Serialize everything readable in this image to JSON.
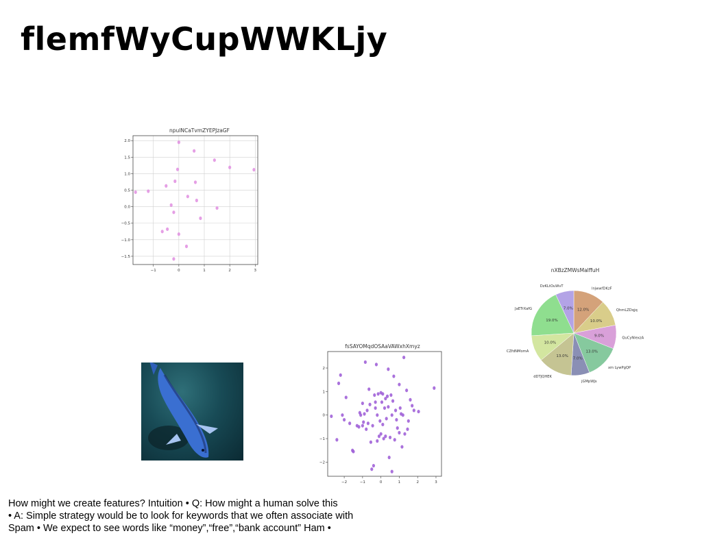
{
  "slide": {
    "title": "flemfWyCupWWKLjy",
    "body_lines": [
      "How might we create features? Intuition • Q: How might a human solve this",
      "• A: Simple strategy would be to look for keywords that we often associate with",
      "Spam • We expect to see words like “money”,“free”,“bank account” Ham •"
    ],
    "image_subject": "koi-fish-photo"
  },
  "chart_data": [
    {
      "type": "scatter",
      "title": "npulNCaTvmZYEPJzaGF",
      "xlabel": "",
      "ylabel": "",
      "xlim": [
        -1.8,
        3.1
      ],
      "ylim": [
        -1.75,
        2.15
      ],
      "xticks": [
        -1,
        0,
        1,
        2,
        3
      ],
      "yticks": [
        -1.5,
        -1.0,
        -0.5,
        0.0,
        0.5,
        1.0,
        1.5,
        2.0
      ],
      "xtick_labels": [
        "−1",
        "0",
        "1",
        "2",
        "3"
      ],
      "ytick_labels": [
        "−1.5",
        "−1.0",
        "−0.5",
        "0.0",
        "0.5",
        "1.0",
        "1.5",
        "2.0"
      ],
      "grid": true,
      "color": "#e08ee0",
      "x": [
        -1.7,
        -1.2,
        -0.5,
        -0.3,
        -0.15,
        -0.05,
        0.0,
        0.0,
        0.3,
        0.35,
        0.6,
        0.65,
        0.7,
        0.85,
        1.4,
        1.5,
        2.0,
        2.95,
        -0.2,
        -0.65,
        -0.45,
        -0.2
      ],
      "y": [
        0.44,
        0.47,
        0.63,
        0.05,
        0.77,
        1.13,
        1.95,
        -0.83,
        -1.2,
        0.31,
        1.69,
        0.74,
        0.19,
        -0.35,
        1.41,
        -0.04,
        1.19,
        1.12,
        -1.58,
        -0.75,
        -0.68,
        -0.17
      ]
    },
    {
      "type": "scatter",
      "title": "fsSAYOMqdOSAaVAWxhXmyz",
      "xlabel": "",
      "ylabel": "",
      "xlim": [
        -2.9,
        3.3
      ],
      "ylim": [
        -2.6,
        2.7
      ],
      "xticks": [
        -2,
        -1,
        0,
        1,
        2,
        3
      ],
      "yticks": [
        -2,
        -1,
        0,
        1,
        2
      ],
      "xtick_labels": [
        "−2",
        "−1",
        "0",
        "1",
        "2",
        "3"
      ],
      "ytick_labels": [
        "−2",
        "−1",
        "0",
        "1",
        "2"
      ],
      "grid": false,
      "color": "#9b59d6",
      "x": [
        -2.7,
        -2.4,
        -2.3,
        -2.2,
        -2.1,
        -2.0,
        -1.9,
        -1.7,
        -1.55,
        -1.5,
        -1.3,
        -1.2,
        -1.15,
        -1.1,
        -1.0,
        -0.95,
        -0.9,
        -0.85,
        -0.8,
        -0.75,
        -0.7,
        -0.65,
        -0.6,
        -0.5,
        -0.45,
        -0.4,
        -0.35,
        -0.3,
        -0.25,
        -0.2,
        -0.2,
        -0.15,
        -0.1,
        -0.05,
        0.0,
        0.0,
        0.05,
        0.1,
        0.1,
        0.15,
        0.2,
        0.25,
        0.3,
        0.35,
        0.4,
        0.45,
        0.5,
        0.55,
        0.6,
        0.65,
        0.7,
        0.75,
        0.8,
        0.85,
        0.9,
        1.0,
        1.05,
        1.1,
        1.15,
        1.2,
        1.25,
        1.3,
        1.4,
        1.45,
        1.5,
        1.6,
        1.7,
        1.8,
        2.05,
        2.9,
        -0.3,
        0.6,
        -0.55,
        0.25,
        1.0,
        -1.0,
        0.4
      ],
      "y": [
        -0.05,
        -1.05,
        1.35,
        1.7,
        0.0,
        -0.2,
        0.75,
        -0.35,
        -1.5,
        -1.55,
        -0.45,
        -0.5,
        0.1,
        0.0,
        0.5,
        -0.3,
        0.05,
        2.25,
        -0.6,
        0.2,
        -0.35,
        1.1,
        0.45,
        -2.3,
        -0.45,
        -2.15,
        0.85,
        0.3,
        2.15,
        0.0,
        -1.1,
        0.9,
        -0.9,
        -0.25,
        0.95,
        -0.8,
        0.55,
        -0.4,
        0.9,
        -1.0,
        0.3,
        0.7,
        -0.15,
        0.8,
        1.95,
        -1.8,
        -0.95,
        0.85,
        -2.4,
        0.6,
        1.65,
        -1.05,
        0.2,
        -0.2,
        -0.55,
        1.3,
        0.3,
        0.05,
        -1.35,
        0.0,
        2.45,
        -0.8,
        1.05,
        -0.6,
        -0.25,
        0.65,
        0.4,
        0.2,
        0.15,
        1.15,
        0.55,
        0.0,
        -1.15,
        -0.9,
        -0.75,
        -0.45,
        0.35
      ]
    },
    {
      "type": "pie",
      "title": "nXBzZMWsMalffuH",
      "labels": [
        "lnjwwfDKzF",
        "QhmLZDqjq",
        "QuCyNlexzA",
        "xm LywPgQP",
        "jGMpWJs",
        "dDTJQHEK",
        "CZfdNMomA",
        "JaETrXafG",
        "DzKLtOuWvT"
      ],
      "values": [
        12.0,
        10.0,
        9.0,
        13.0,
        7.0,
        13.0,
        10.0,
        19.0,
        7.0
      ],
      "value_labels": [
        "12.0%",
        "10.0%",
        "9.0%",
        "13.0%",
        "7.0%",
        "13.0%",
        "10.0%",
        "19.0%",
        "7.0%"
      ],
      "colors": [
        "#d4a27a",
        "#d9cd8a",
        "#d9a0d9",
        "#86c99e",
        "#8a8fb5",
        "#c5c493",
        "#d3e6a0",
        "#8fde8f",
        "#b3a3e6"
      ],
      "start_angle_deg": 90,
      "direction": "clockwise"
    }
  ]
}
